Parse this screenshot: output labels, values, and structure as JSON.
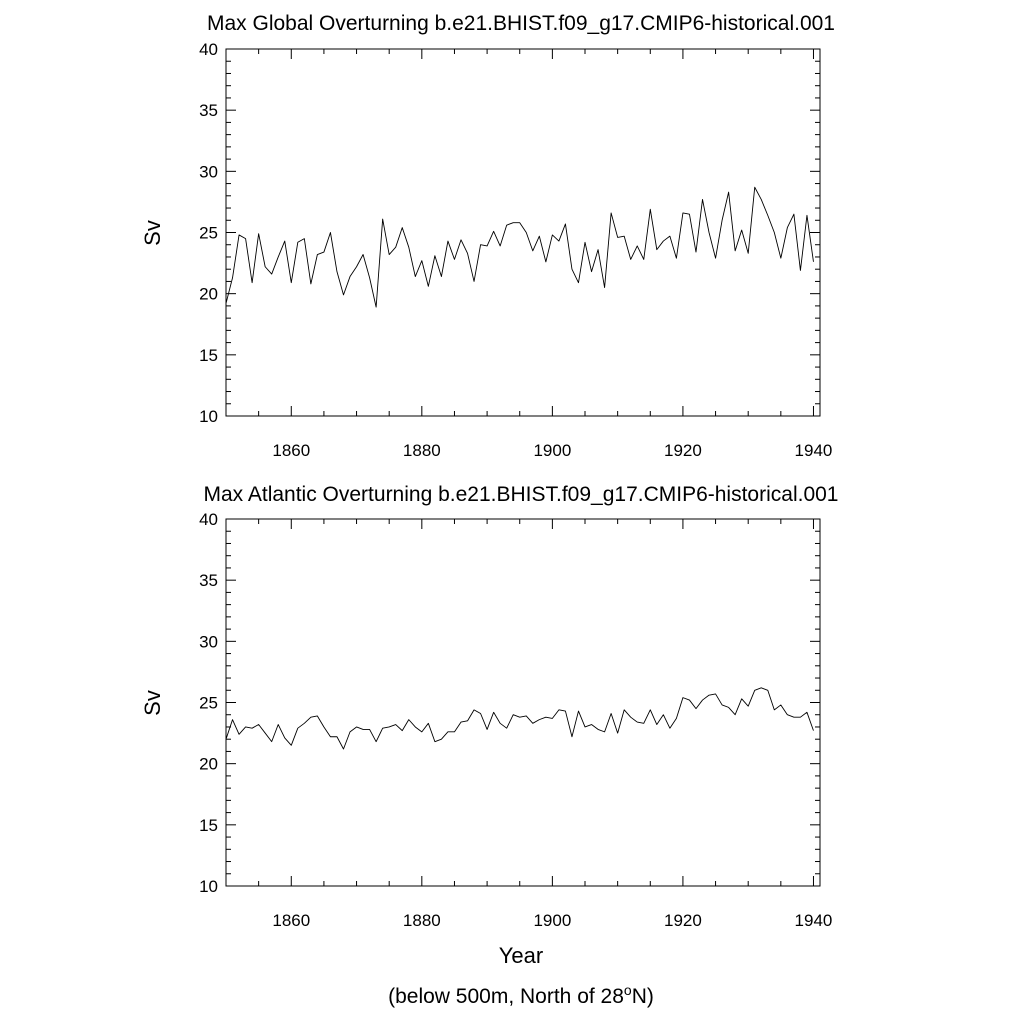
{
  "figure": {
    "xlabel": "Year",
    "footnote_main": "(below 500m, North of 28",
    "footnote_sup": "o",
    "footnote_end": "N)"
  },
  "chart_data": [
    {
      "type": "line",
      "title": "Max Global Overturning b.e21.BHIST.f09_g17.CMIP6-historical.001",
      "xlabel": "",
      "ylabel": "Sv",
      "xlim": [
        1850,
        1941
      ],
      "ylim": [
        10,
        40
      ],
      "xticks": [
        1860,
        1880,
        1900,
        1920,
        1940
      ],
      "yticks": [
        10,
        15,
        20,
        25,
        30,
        35,
        40
      ],
      "grid": false,
      "x_start": 1850,
      "x_step": 1,
      "series": [
        {
          "values": [
            19.2,
            21.3,
            24.8,
            24.5,
            20.9,
            24.9,
            22.2,
            21.6,
            23.0,
            24.3,
            20.9,
            24.2,
            24.5,
            20.8,
            23.2,
            23.4,
            25.0,
            21.8,
            19.9,
            21.4,
            22.2,
            23.2,
            21.3,
            18.9,
            26.1,
            23.2,
            23.8,
            25.4,
            23.8,
            21.4,
            22.7,
            20.6,
            23.1,
            21.4,
            24.3,
            22.8,
            24.4,
            23.3,
            21.0,
            24.0,
            23.9,
            25.1,
            23.9,
            25.6,
            25.8,
            25.8,
            25.0,
            23.5,
            24.7,
            22.6,
            24.8,
            24.3,
            25.7,
            22.0,
            20.9,
            24.2,
            21.8,
            23.6,
            20.5,
            26.6,
            24.6,
            24.7,
            22.8,
            23.9,
            22.8,
            26.9,
            23.6,
            24.3,
            24.7,
            22.9,
            26.6,
            26.5,
            23.4,
            27.7,
            25.0,
            22.9,
            26.0,
            28.3,
            23.5,
            25.2,
            23.3,
            28.7,
            27.7,
            26.4,
            25.0,
            22.9,
            25.4,
            26.5,
            21.9,
            26.4,
            22.6
          ]
        }
      ]
    },
    {
      "type": "line",
      "title": "Max Atlantic Overturning b.e21.BHIST.f09_g17.CMIP6-historical.001",
      "xlabel": "",
      "ylabel": "Sv",
      "xlim": [
        1850,
        1941
      ],
      "ylim": [
        10,
        40
      ],
      "xticks": [
        1860,
        1880,
        1900,
        1920,
        1940
      ],
      "yticks": [
        10,
        15,
        20,
        25,
        30,
        35,
        40
      ],
      "grid": false,
      "x_start": 1850,
      "x_step": 1,
      "series": [
        {
          "values": [
            22.0,
            23.6,
            22.4,
            23.0,
            22.9,
            23.2,
            22.5,
            21.8,
            23.2,
            22.1,
            21.5,
            22.9,
            23.3,
            23.8,
            23.9,
            23.0,
            22.2,
            22.2,
            21.2,
            22.6,
            23.0,
            22.8,
            22.8,
            21.8,
            22.9,
            23.0,
            23.2,
            22.7,
            23.6,
            23.0,
            22.6,
            23.3,
            21.8,
            22.0,
            22.6,
            22.6,
            23.4,
            23.5,
            24.4,
            24.1,
            22.8,
            24.2,
            23.3,
            22.9,
            24.0,
            23.8,
            23.9,
            23.3,
            23.6,
            23.8,
            23.7,
            24.4,
            24.3,
            22.2,
            24.3,
            23.0,
            23.2,
            22.8,
            22.6,
            24.1,
            22.5,
            24.4,
            23.8,
            23.4,
            23.3,
            24.4,
            23.2,
            24.0,
            22.9,
            23.7,
            25.4,
            25.2,
            24.5,
            25.2,
            25.6,
            25.7,
            24.8,
            24.6,
            24.0,
            25.3,
            24.7,
            26.0,
            26.2,
            26.0,
            24.4,
            24.8,
            24.0,
            23.8,
            23.8,
            24.2,
            22.7
          ]
        }
      ]
    }
  ]
}
